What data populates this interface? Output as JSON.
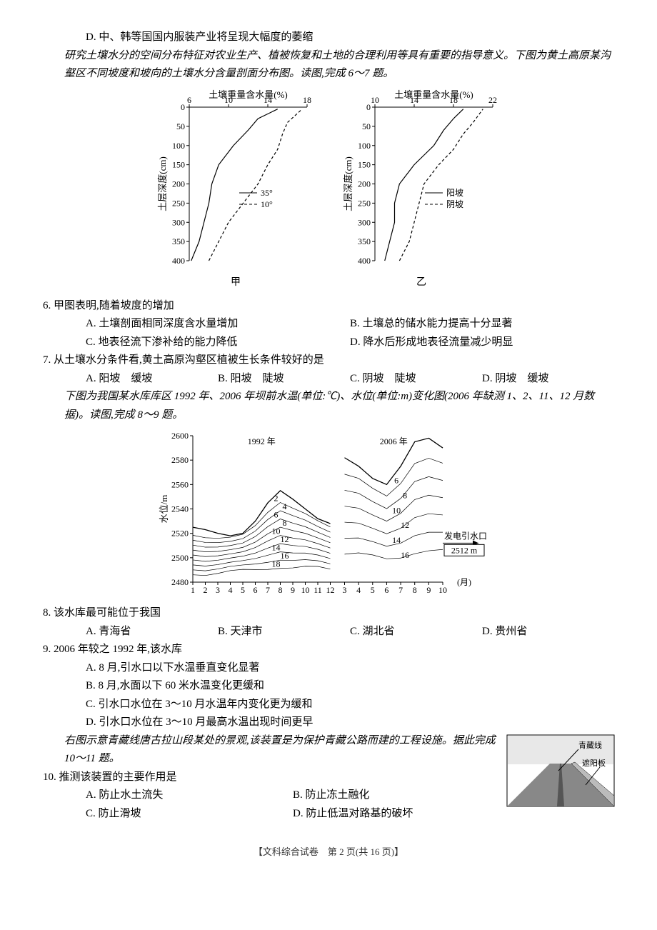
{
  "intro_d": "D. 中、韩等国国内服装产业将呈现大幅度的萎缩",
  "passage67": "研究土壤水分的空间分布特征对农业生产、植被恢复和土地的合理利用等具有重要的指导意义。下图为黄土高原某沟壑区不同坡度和坡向的土壤水分含量剖面分布图。读图,完成 6～7 题。",
  "chart67": {
    "x_title": "土壤重量含水量(%)",
    "y_title": "土层深度(cm)",
    "left": {
      "label": "甲",
      "x_ticks": [
        6,
        10,
        14,
        18
      ],
      "y_ticks": [
        0,
        50,
        100,
        150,
        200,
        250,
        300,
        350,
        400
      ],
      "legend": [
        "35°",
        "10°"
      ],
      "series": {
        "s35": [
          [
            6.2,
            400
          ],
          [
            7,
            350
          ],
          [
            7.5,
            300
          ],
          [
            8,
            250
          ],
          [
            8.3,
            200
          ],
          [
            9,
            150
          ],
          [
            10.5,
            100
          ],
          [
            12,
            60
          ],
          [
            13,
            30
          ],
          [
            15,
            5
          ]
        ],
        "s10": [
          [
            8,
            400
          ],
          [
            9,
            350
          ],
          [
            10,
            300
          ],
          [
            11.5,
            250
          ],
          [
            13,
            200
          ],
          [
            14,
            150
          ],
          [
            15,
            110
          ],
          [
            15.5,
            70
          ],
          [
            16,
            40
          ],
          [
            17.5,
            5
          ]
        ]
      },
      "colors": {
        "s35": "#000000",
        "s10": "#000000"
      },
      "dash": {
        "s35": "",
        "s10": "4 3"
      }
    },
    "right": {
      "label": "乙",
      "x_ticks": [
        10,
        14,
        18,
        22
      ],
      "y_ticks": [
        0,
        50,
        100,
        150,
        200,
        250,
        300,
        350,
        400
      ],
      "legend": [
        "阳坡",
        "阴坡"
      ],
      "series": {
        "yang": [
          [
            11,
            400
          ],
          [
            11.5,
            350
          ],
          [
            12,
            300
          ],
          [
            12,
            250
          ],
          [
            12.5,
            200
          ],
          [
            14,
            150
          ],
          [
            16,
            100
          ],
          [
            17,
            60
          ],
          [
            18,
            30
          ],
          [
            19,
            5
          ]
        ],
        "yin": [
          [
            12.5,
            400
          ],
          [
            13.5,
            350
          ],
          [
            14,
            300
          ],
          [
            14.5,
            250
          ],
          [
            15,
            200
          ],
          [
            16.5,
            150
          ],
          [
            18,
            110
          ],
          [
            19,
            70
          ],
          [
            20,
            40
          ],
          [
            21,
            5
          ]
        ]
      },
      "colors": {
        "yang": "#000000",
        "yin": "#000000"
      },
      "dash": {
        "yang": "",
        "yin": "4 3"
      }
    }
  },
  "q6": {
    "stem": "6. 甲图表明,随着坡度的增加",
    "A": "A. 土壤剖面相同深度含水量增加",
    "B": "B. 土壤总的储水能力提高十分显著",
    "C": "C. 地表径流下渗补给的能力降低",
    "D": "D. 降水后形成地表径流量减少明显"
  },
  "q7": {
    "stem": "7. 从土壤水分条件看,黄土高原沟壑区植被生长条件较好的是",
    "A": "A. 阳坡　缓坡",
    "B": "B. 阳坡　陡坡",
    "C": "C. 阴坡　陡坡",
    "D": "D. 阴坡　缓坡"
  },
  "passage89": "下图为我国某水库库区 1992 年、2006 年坝前水温(单位:℃)、水位(单位:m)变化图(2006 年缺测 1、2、11、12 月数据)。读图,完成 8～9 题。",
  "chart89": {
    "y_title": "水位/m",
    "xr_title": "(月)",
    "y_ticks": [
      2480,
      2500,
      2520,
      2540,
      2560,
      2580,
      2600
    ],
    "left_label": "1992 年",
    "right_label": "2006 年",
    "intake_label": "发电引水口",
    "intake_value": "2512 m",
    "left_months": [
      1,
      2,
      3,
      4,
      5,
      6,
      7,
      8,
      9,
      10,
      11,
      12
    ],
    "right_months": [
      3,
      4,
      5,
      6,
      7,
      8,
      9,
      10
    ],
    "left_surface": [
      [
        1,
        2525
      ],
      [
        2,
        2523
      ],
      [
        3,
        2520
      ],
      [
        4,
        2518
      ],
      [
        5,
        2520
      ],
      [
        6,
        2530
      ],
      [
        7,
        2545
      ],
      [
        8,
        2555
      ],
      [
        9,
        2548
      ],
      [
        10,
        2540
      ],
      [
        11,
        2532
      ],
      [
        12,
        2528
      ]
    ],
    "right_surface": [
      [
        3,
        2582
      ],
      [
        4,
        2575
      ],
      [
        5,
        2565
      ],
      [
        6,
        2560
      ],
      [
        7,
        2575
      ],
      [
        8,
        2595
      ],
      [
        9,
        2598
      ],
      [
        10,
        2590
      ]
    ],
    "iso_labels_left": [
      "2",
      "4",
      "6",
      "8",
      "10",
      "12",
      "14",
      "16",
      "18"
    ],
    "iso_labels_right": [
      "6",
      "8",
      "10",
      "12",
      "14",
      "16"
    ],
    "line_color": "#000000",
    "bg": "#ffffff"
  },
  "q8": {
    "stem": "8. 该水库最可能位于我国",
    "A": "A. 青海省",
    "B": "B. 天津市",
    "C": "C. 湖北省",
    "D": "D. 贵州省"
  },
  "q9": {
    "stem": "9. 2006 年较之 1992 年,该水库",
    "A": "A. 8 月,引水口以下水温垂直变化显著",
    "B": "B. 8 月,水面以下 60 米水温变化更缓和",
    "C": "C. 引水口水位在 3～10 月水温年内变化更为缓和",
    "D": "D. 引水口水位在 3～10 月最高水温出现时间更早"
  },
  "passage1011": "右图示意青藏线唐古拉山段某处的景观,该装置是为保护青藏公路而建的工程设施。据此完成 10～11 题。",
  "img1011": {
    "label_rail": "青藏线",
    "label_board": "遮阳板"
  },
  "q10": {
    "stem": "10. 推测该装置的主要作用是",
    "A": "A. 防止水土流失",
    "B": "B. 防止冻土融化",
    "C": "C. 防止滑坡",
    "D": "D. 防止低温对路基的破坏"
  },
  "footer": "【文科综合试卷　第 2 页(共 16 页)】"
}
